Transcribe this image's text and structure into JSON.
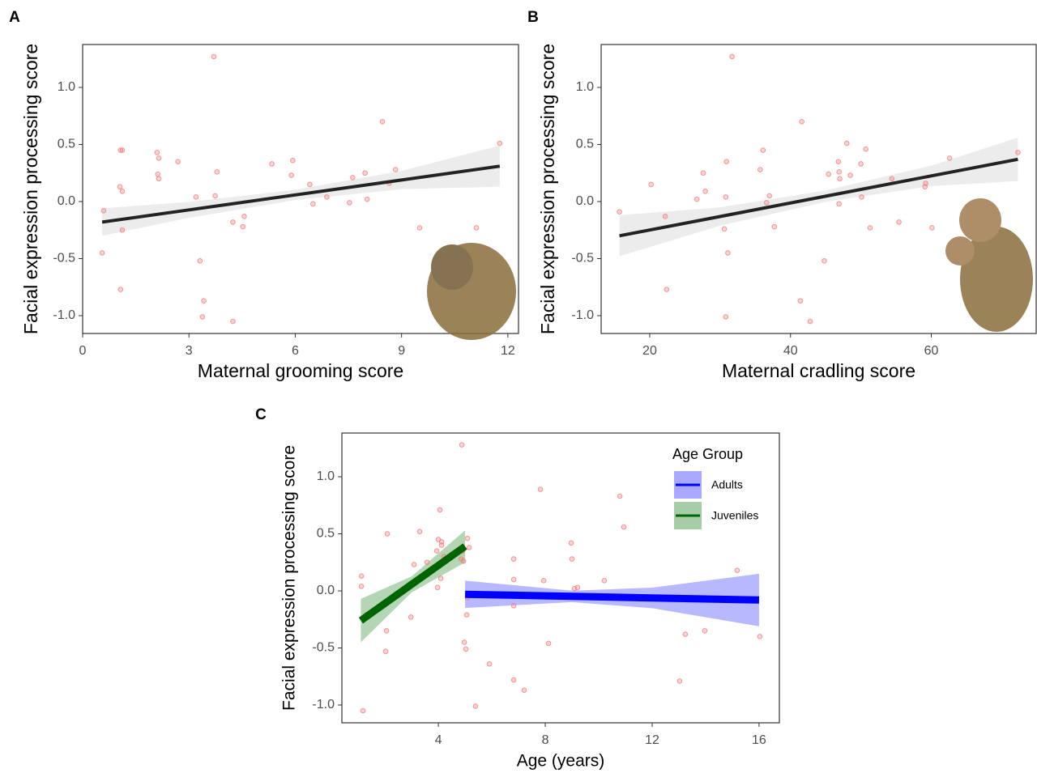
{
  "chart_data": [
    {
      "type": "scatter",
      "panel": "A",
      "xlabel": "Maternal grooming score",
      "ylabel": "Facial expression processing score",
      "xlim": [
        0,
        12.3
      ],
      "ylim": [
        -1.156,
        1.376
      ],
      "xticks": [
        0,
        3,
        6,
        9,
        12
      ],
      "yticks": [
        {
          "value": -1,
          "label": "-1.0"
        },
        -0.5,
        {
          "value": 0,
          "label": "0.0"
        },
        0.5,
        {
          "value": 1,
          "label": "1.0"
        }
      ],
      "color": "#f08080",
      "x": [
        0.55,
        0.59,
        1.07,
        1.12,
        1.05,
        1.12,
        1.12,
        1.07,
        2.1,
        2.15,
        2.12,
        2.15,
        2.69,
        3.2,
        3.31,
        3.42,
        3.38,
        3.7,
        3.79,
        3.74,
        4.24,
        4.24,
        4.56,
        4.52,
        5.34,
        5.93,
        5.89,
        6.41,
        6.5,
        6.89,
        7.53,
        7.62,
        7.97,
        8.03,
        8.46,
        8.65,
        8.83,
        9.51,
        11.11,
        11.77
      ],
      "values": [
        -0.45,
        -0.08,
        0.45,
        0.45,
        0.13,
        0.09,
        -0.25,
        -0.77,
        0.43,
        0.38,
        0.24,
        0.2,
        0.35,
        0.04,
        -0.52,
        -0.87,
        -1.01,
        1.27,
        0.26,
        0.05,
        -0.18,
        -1.05,
        -0.13,
        -0.22,
        0.33,
        0.36,
        0.23,
        0.15,
        -0.02,
        0.04,
        -0.01,
        0.21,
        0.25,
        0.02,
        0.7,
        0.16,
        0.28,
        -0.23,
        -0.23,
        0.51
      ],
      "fits": [
        {
          "color": "#222222",
          "band_color": "#e6e6e6",
          "x": [
            0.55,
            3,
            6,
            9,
            11.77
          ],
          "values": [
            -0.18,
            -0.073,
            0.058,
            0.189,
            0.31
          ],
          "lower": [
            -0.3,
            -0.143,
            0.013,
            0.109,
            0.13
          ],
          "upper": [
            -0.06,
            -0.003,
            0.103,
            0.269,
            0.49
          ]
        }
      ]
    },
    {
      "type": "scatter",
      "panel": "B",
      "xlabel": "Maternal cradling score",
      "ylabel": "Facial expression processing score",
      "xlim": [
        13.1,
        74.9
      ],
      "ylim": [
        -1.156,
        1.376
      ],
      "xticks": [
        20,
        40,
        60
      ],
      "yticks": [
        {
          "value": -1,
          "label": "-1.0"
        },
        -0.5,
        {
          "value": 0,
          "label": "0.0"
        },
        0.5,
        {
          "value": 1,
          "label": "1.0"
        }
      ],
      "color": "#f08080",
      "x": [
        15.7,
        20.2,
        22.2,
        22.4,
        26.7,
        27.6,
        27.9,
        30.8,
        30.9,
        30.6,
        31.1,
        30.8,
        31.7,
        36.1,
        35.7,
        37.0,
        36.6,
        37.7,
        41.6,
        41.4,
        42.8,
        44.8,
        45.4,
        46.8,
        46.9,
        47.0,
        46.9,
        48.0,
        48.5,
        50.0,
        50.7,
        50.1,
        51.3,
        54.4,
        55.4,
        59.1,
        59.2,
        60.1,
        62.6,
        72.3
      ],
      "values": [
        -0.09,
        0.15,
        -0.13,
        -0.77,
        0.02,
        0.25,
        0.09,
        0.04,
        0.35,
        -0.24,
        -0.45,
        -1.01,
        1.27,
        0.45,
        0.28,
        0.05,
        -0.01,
        -0.22,
        0.7,
        -0.87,
        -1.05,
        -0.52,
        0.24,
        0.35,
        0.26,
        0.2,
        -0.02,
        0.51,
        0.23,
        0.33,
        0.46,
        0.04,
        -0.23,
        0.2,
        -0.18,
        0.13,
        0.16,
        -0.23,
        0.38,
        0.43
      ],
      "fits": [
        {
          "color": "#222222",
          "band_color": "#e6e6e6",
          "x": [
            15.7,
            30,
            45,
            60,
            72.3
          ],
          "values": [
            -0.3,
            -0.131,
            0.047,
            0.225,
            0.37
          ],
          "lower": [
            -0.48,
            -0.211,
            -0.003,
            0.135,
            0.18
          ],
          "upper": [
            -0.12,
            -0.051,
            0.097,
            0.315,
            0.56
          ]
        }
      ]
    },
    {
      "type": "scatter",
      "panel": "C",
      "xlabel": "Age (years)",
      "ylabel": "Facial expression processing score",
      "xlim": [
        0.39,
        16.76
      ],
      "ylim": [
        -1.156,
        1.383
      ],
      "xticks": [
        4,
        8,
        12,
        16
      ],
      "yticks": [
        {
          "value": -1,
          "label": "-1.0"
        },
        -0.5,
        {
          "value": 0,
          "label": "0.0"
        },
        0.5,
        {
          "value": 1,
          "label": "1.0"
        }
      ],
      "color": "#f08080",
      "x": [
        1.18,
        1.12,
        1.12,
        1.3,
        2.09,
        2.06,
        2.03,
        2.97,
        3.09,
        3.3,
        3.58,
        3.94,
        3.97,
        4.0,
        4.06,
        4.12,
        4.12,
        4.09,
        4.21,
        4.88,
        4.85,
        4.94,
        4.91,
        5.09,
        5.15,
        4.97,
        5.03,
        5.06,
        5.09,
        5.39,
        5.91,
        6.82,
        6.82,
        6.82,
        6.82,
        7.21,
        7.82,
        7.94,
        8.12,
        8.97,
        9.0,
        9.09,
        9.21,
        10.21,
        10.79,
        10.94,
        13.03,
        13.24,
        13.97,
        15.18,
        16.03
      ],
      "values": [
        -1.05,
        0.13,
        0.04,
        -0.21,
        0.5,
        -0.35,
        -0.53,
        -0.23,
        0.23,
        0.52,
        0.25,
        0.35,
        0.03,
        0.45,
        0.71,
        0.43,
        0.4,
        0.11,
        0.3,
        1.28,
        0.28,
        0.26,
        0.35,
        0.46,
        0.38,
        -0.45,
        -0.51,
        -0.21,
        -0.06,
        -1.01,
        -0.64,
        0.28,
        0.1,
        -0.13,
        -0.78,
        -0.87,
        0.89,
        0.09,
        -0.46,
        0.42,
        0.28,
        0.02,
        0.03,
        0.09,
        0.83,
        0.56,
        -0.79,
        -0.38,
        -0.35,
        0.18,
        -0.4
      ],
      "legend_title": "Age Group",
      "legend": "top-right",
      "fits": [
        {
          "name": "Adults",
          "color": "#0000ff",
          "band_color": "#a0a0ff",
          "x": [
            5.0,
            9,
            12,
            16.0
          ],
          "values": [
            -0.03,
            -0.048,
            -0.062,
            -0.08
          ],
          "lower": [
            -0.15,
            -0.098,
            -0.152,
            -0.31
          ],
          "upper": [
            0.09,
            0.002,
            0.028,
            0.15
          ]
        },
        {
          "name": "Juveniles",
          "color": "#006400",
          "band_color": "#9cc89c",
          "x": [
            1.1,
            3,
            5.0
          ],
          "values": [
            -0.26,
            0.057,
            0.39
          ],
          "lower": [
            -0.45,
            -0.013,
            0.25
          ],
          "upper": [
            -0.07,
            0.127,
            0.53
          ]
        }
      ]
    }
  ]
}
